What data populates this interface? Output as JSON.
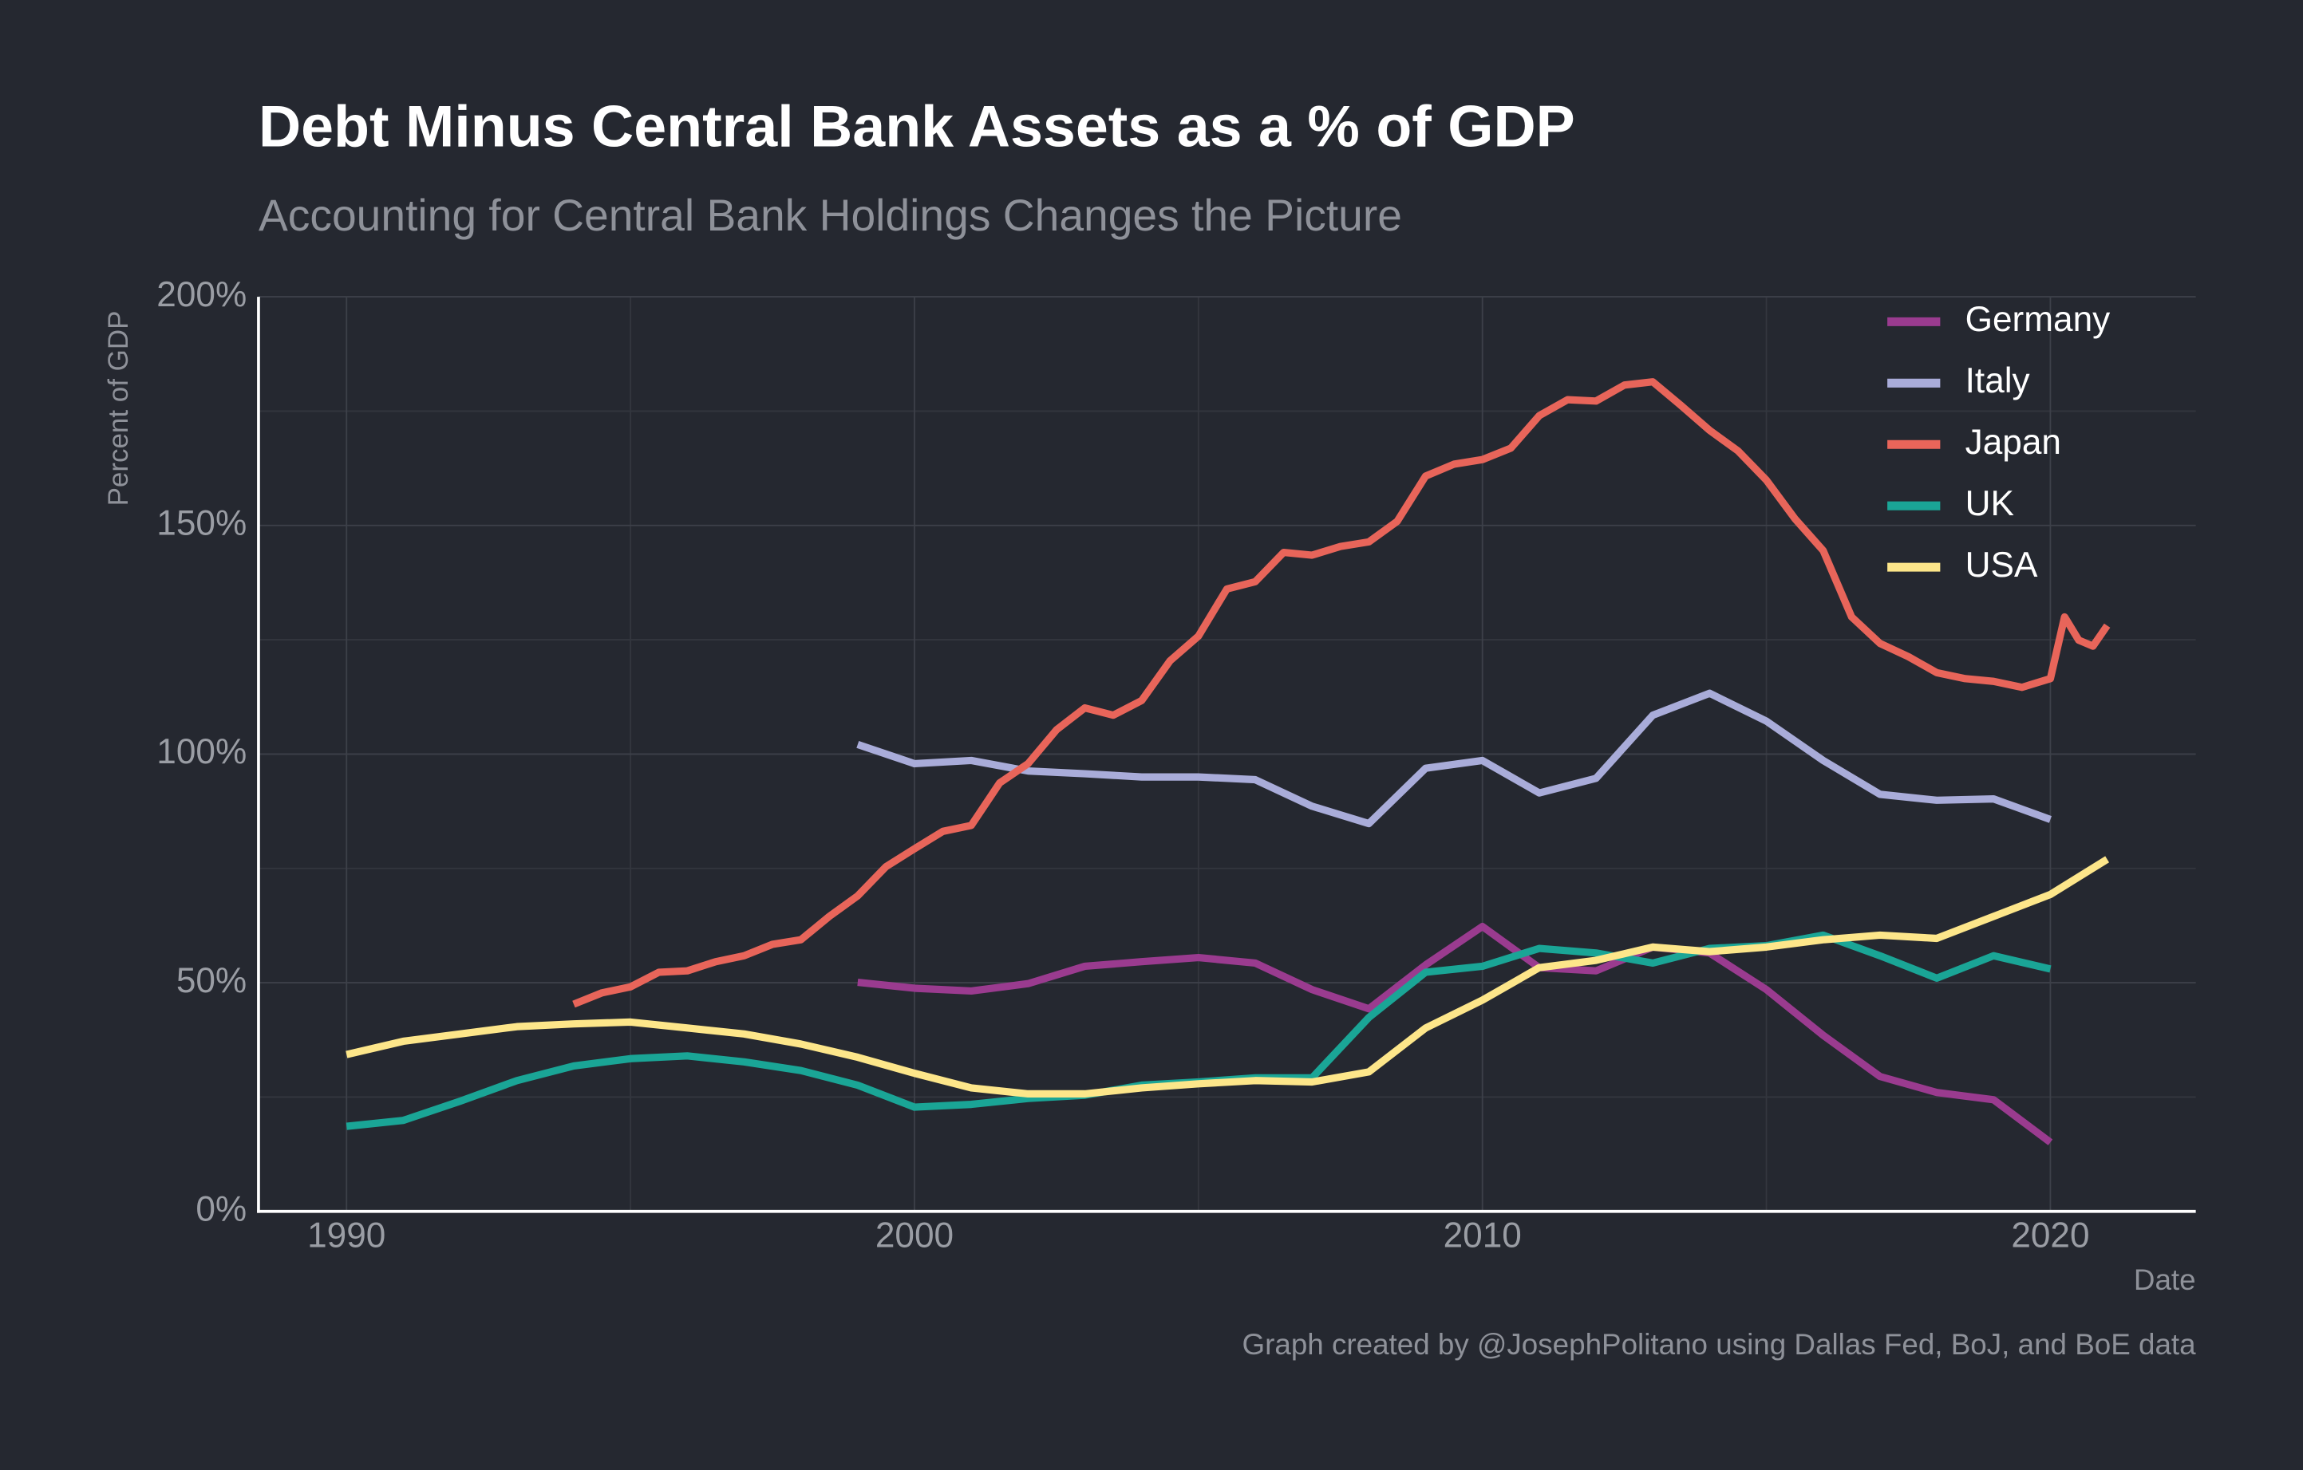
{
  "chart_data": {
    "type": "line",
    "title": "Debt Minus Central Bank Assets as a % of GDP",
    "subtitle": "Accounting for Central Bank Holdings Changes the Picture",
    "y_label": "Percent of GDP",
    "x_label": "Date",
    "caption": "Graph created by @JosephPolitano using Dallas Fed, BoJ, and BoE data",
    "xlim": [
      1988.45,
      2022.56
    ],
    "ylim": [
      0,
      200
    ],
    "xticks": [
      1990,
      2000,
      2010,
      2020
    ],
    "yticks": [
      {
        "value": 0,
        "label": "0%"
      },
      {
        "value": 50,
        "label": "50%"
      },
      {
        "value": 100,
        "label": "100%"
      },
      {
        "value": 150,
        "label": "150%"
      },
      {
        "value": 200,
        "label": "200%"
      }
    ],
    "x_minor_grid": [
      1995,
      2005,
      2015
    ],
    "y_minor_grid": [
      25,
      75,
      125,
      175
    ],
    "grid": true,
    "legend": "top-right",
    "series": [
      {
        "name": "Germany",
        "color": "#9a3b8f",
        "x": [
          1999,
          2000,
          2001,
          2002,
          2003,
          2004,
          2005,
          2006,
          2007,
          2008,
          2009,
          2010,
          2011,
          2012,
          2013,
          2014,
          2015,
          2016,
          2017,
          2018,
          2019,
          2020
        ],
        "values": [
          50.1,
          48.8,
          48.2,
          49.8,
          53.6,
          54.6,
          55.5,
          54.3,
          48.5,
          44.3,
          53.9,
          62.3,
          53.3,
          52.6,
          57.8,
          56.5,
          48.5,
          38.5,
          29.5,
          26,
          24.4,
          15.1
        ]
      },
      {
        "name": "Italy",
        "color": "#a9acd9",
        "x": [
          1999,
          2000,
          2001,
          2002,
          2003,
          2004,
          2005,
          2006,
          2007,
          2008,
          2009,
          2010,
          2011,
          2012,
          2013,
          2014,
          2015,
          2016,
          2017,
          2018,
          2019,
          2020
        ],
        "values": [
          102.1,
          97.9,
          98.6,
          96.3,
          95.7,
          95,
          95,
          94.4,
          88.6,
          84.8,
          96.9,
          98.6,
          91.5,
          94.7,
          108.5,
          113.3,
          107.2,
          98.6,
          91.2,
          89.9,
          90.2,
          85.7
        ]
      },
      {
        "name": "Japan",
        "color": "#e8655a",
        "x": [
          1994,
          1994.5,
          1995,
          1995.5,
          1996,
          1996.5,
          1997,
          1997.5,
          1998,
          1998.5,
          1999,
          1999.5,
          2000,
          2000.5,
          2001,
          2001.5,
          2002,
          2002.5,
          2003,
          2003.5,
          2004,
          2004.5,
          2005,
          2005.5,
          2006,
          2006.5,
          2007,
          2007.5,
          2008,
          2008.5,
          2009,
          2009.5,
          2010,
          2010.5,
          2011,
          2011.5,
          2012,
          2012.5,
          2013,
          2013.5,
          2014,
          2014.5,
          2015,
          2015.5,
          2016,
          2016.5,
          2017,
          2017.5,
          2018,
          2018.5,
          2019,
          2019.5,
          2020,
          2020.25,
          2020.5,
          2020.75,
          2021
        ],
        "values": [
          45.3,
          47.8,
          49.1,
          52.3,
          52.6,
          54.6,
          55.9,
          58.4,
          59.4,
          64.5,
          69,
          75.4,
          79.3,
          83.1,
          84.4,
          93.7,
          97.9,
          105.3,
          110.1,
          108.5,
          111.7,
          120.4,
          125.8,
          136.1,
          137.7,
          144.1,
          143.5,
          145.4,
          146.4,
          150.9,
          160.8,
          163.4,
          164.4,
          166.9,
          174,
          177.5,
          177.2,
          180.7,
          181.4,
          176.2,
          170.8,
          166.3,
          159.9,
          151.5,
          144.5,
          130,
          124.2,
          121.3,
          117.8,
          116.5,
          115.9,
          114.6,
          116.5,
          130,
          124.9,
          123.6,
          128.1
        ]
      },
      {
        "name": "UK",
        "color": "#1aa596",
        "x": [
          1990,
          1991,
          1992,
          1993,
          1994,
          1995,
          1996,
          1997,
          1998,
          1999,
          2000,
          2001,
          2002,
          2003,
          2004,
          2005,
          2006,
          2007,
          2008,
          2009,
          2010,
          2011,
          2012,
          2013,
          2014,
          2015,
          2016,
          2017,
          2018,
          2019,
          2020
        ],
        "values": [
          18.6,
          19.9,
          24.1,
          28.6,
          31.8,
          33.4,
          34,
          32.7,
          30.8,
          27.6,
          22.8,
          23.4,
          24.7,
          25.4,
          27.6,
          28.3,
          29.2,
          29.2,
          42.4,
          52.3,
          53.6,
          57.5,
          56.5,
          54.3,
          57.5,
          58.1,
          60.4,
          55.9,
          51,
          55.9,
          53
        ]
      },
      {
        "name": "USA",
        "color": "#fde68a",
        "x": [
          1990,
          1991,
          1992,
          1993,
          1994,
          1995,
          1996,
          1997,
          1998,
          1999,
          2000,
          2001,
          2002,
          2003,
          2004,
          2005,
          2006,
          2007,
          2008,
          2009,
          2010,
          2011,
          2012,
          2013,
          2014,
          2015,
          2016,
          2017,
          2018,
          2019,
          2020,
          2021
        ],
        "values": [
          34.3,
          37.2,
          38.8,
          40.4,
          41,
          41.4,
          40.1,
          38.8,
          36.6,
          33.7,
          30.2,
          27,
          25.7,
          25.7,
          27,
          27.9,
          28.6,
          28.3,
          30.5,
          40.1,
          46.2,
          53.3,
          54.9,
          57.8,
          56.8,
          57.8,
          59.4,
          60.4,
          59.7,
          64.5,
          69.3,
          77
        ]
      }
    ]
  }
}
